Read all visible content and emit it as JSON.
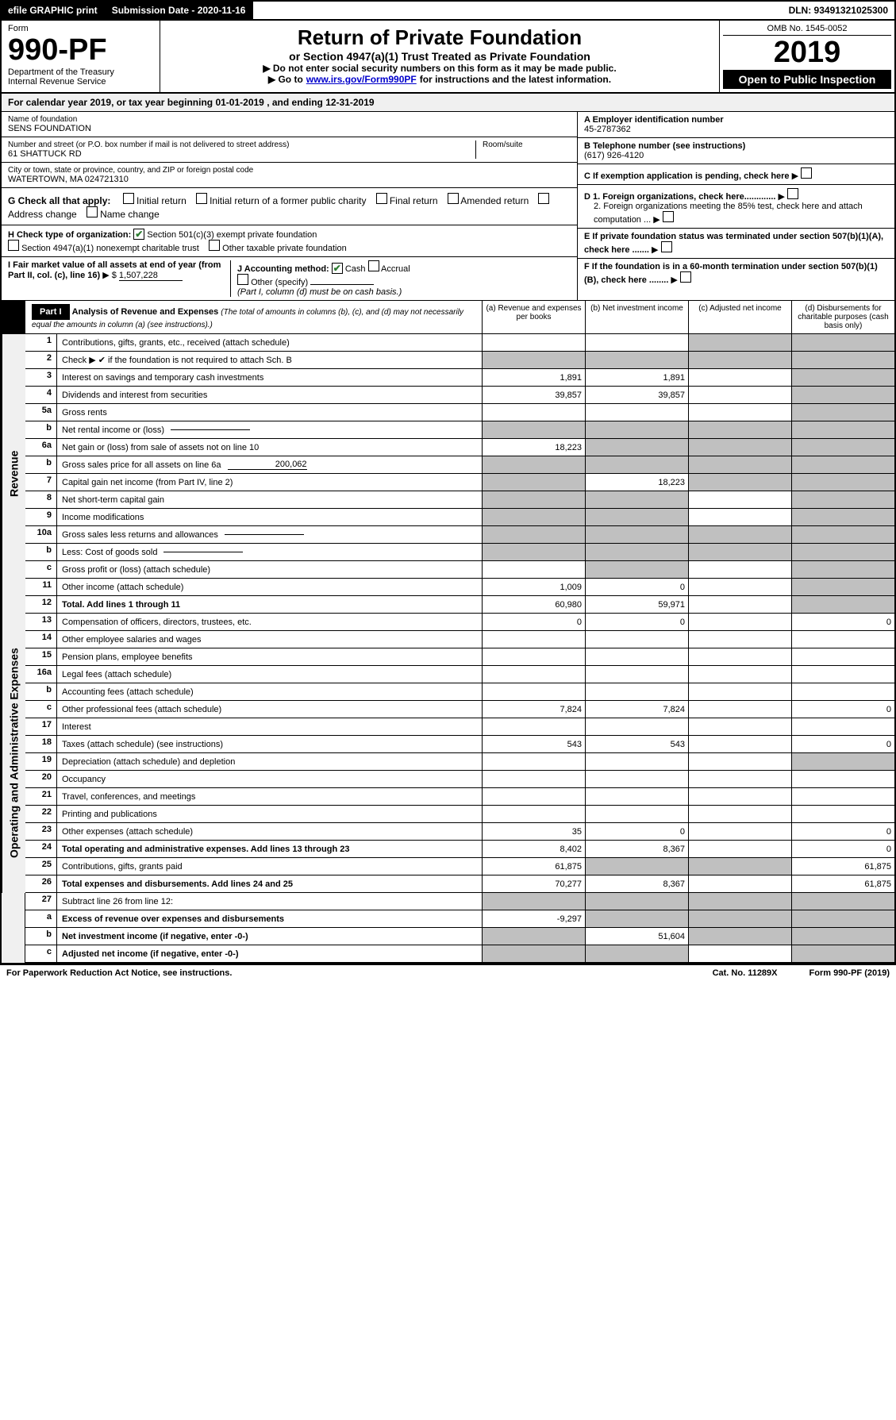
{
  "topbar": {
    "efile": "efile GRAPHIC print",
    "submission_label": "Submission Date - 2020-11-16",
    "dln": "DLN: 93491321025300"
  },
  "header": {
    "form_label": "Form",
    "form_number": "990-PF",
    "dept": "Department of the Treasury",
    "irs": "Internal Revenue Service",
    "title": "Return of Private Foundation",
    "subtitle": "or Section 4947(a)(1) Trust Treated as Private Foundation",
    "instr1": "▶ Do not enter social security numbers on this form as it may be made public.",
    "instr2_pre": "▶ Go to ",
    "instr2_link": "www.irs.gov/Form990PF",
    "instr2_post": " for instructions and the latest information.",
    "omb": "OMB No. 1545-0052",
    "year": "2019",
    "inspect": "Open to Public Inspection"
  },
  "calyear": {
    "text_pre": "For calendar year 2019, or tax year beginning ",
    "begin": "01-01-2019",
    "text_mid": " , and ending ",
    "end": "12-31-2019"
  },
  "entity": {
    "name_label": "Name of foundation",
    "name": "SENS FOUNDATION",
    "addr_label": "Number and street (or P.O. box number if mail is not delivered to street address)",
    "addr": "61 SHATTUCK RD",
    "room_label": "Room/suite",
    "city_label": "City or town, state or province, country, and ZIP or foreign postal code",
    "city": "WATERTOWN, MA  024721310",
    "ein_label": "A Employer identification number",
    "ein": "45-2787362",
    "phone_label": "B Telephone number (see instructions)",
    "phone": "(617) 926-4120",
    "c_label": "C If exemption application is pending, check here",
    "d1": "D 1. Foreign organizations, check here.............",
    "d2": "2. Foreign organizations meeting the 85% test, check here and attach computation ...",
    "e_label": "E If private foundation status was terminated under section 507(b)(1)(A), check here .......",
    "f_label": "F If the foundation is in a 60-month termination under section 507(b)(1)(B), check here ........"
  },
  "sectionG": {
    "label": "G Check all that apply:",
    "opts": [
      "Initial return",
      "Initial return of a former public charity",
      "Final return",
      "Amended return",
      "Address change",
      "Name change"
    ]
  },
  "sectionH": {
    "label": "H Check type of organization:",
    "opt1": "Section 501(c)(3) exempt private foundation",
    "opt2": "Section 4947(a)(1) nonexempt charitable trust",
    "opt3": "Other taxable private foundation"
  },
  "sectionI": {
    "label": "I Fair market value of all assets at end of year (from Part II, col. (c), line 16)",
    "value": "1,507,228"
  },
  "sectionJ": {
    "label": "J Accounting method:",
    "cash": "Cash",
    "accrual": "Accrual",
    "other": "Other (specify)",
    "note": "(Part I, column (d) must be on cash basis.)"
  },
  "part1": {
    "label": "Part I",
    "title": "Analysis of Revenue and Expenses",
    "note": "(The total of amounts in columns (b), (c), and (d) may not necessarily equal the amounts in column (a) (see instructions).)",
    "col_a": "(a) Revenue and expenses per books",
    "col_b": "(b) Net investment income",
    "col_c": "(c) Adjusted net income",
    "col_d": "(d) Disbursements for charitable purposes (cash basis only)"
  },
  "side_labels": {
    "revenue": "Revenue",
    "expenses": "Operating and Administrative Expenses"
  },
  "revenue_rows": [
    {
      "n": "1",
      "label": "Contributions, gifts, grants, etc., received (attach schedule)",
      "a": "",
      "b": "",
      "c": "shaded",
      "d": "shaded"
    },
    {
      "n": "2",
      "label": "Check ▶ ✔ if the foundation is not required to attach Sch. B",
      "a": "shaded",
      "b": "shaded",
      "c": "shaded",
      "d": "shaded",
      "checked": true
    },
    {
      "n": "3",
      "label": "Interest on savings and temporary cash investments",
      "a": "1,891",
      "b": "1,891",
      "c": "",
      "d": "shaded"
    },
    {
      "n": "4",
      "label": "Dividends and interest from securities",
      "a": "39,857",
      "b": "39,857",
      "c": "",
      "d": "shaded"
    },
    {
      "n": "5a",
      "label": "Gross rents",
      "a": "",
      "b": "",
      "c": "",
      "d": "shaded"
    },
    {
      "n": "b",
      "label": "Net rental income or (loss)",
      "a": "shaded",
      "b": "shaded",
      "c": "shaded",
      "d": "shaded",
      "input": true
    },
    {
      "n": "6a",
      "label": "Net gain or (loss) from sale of assets not on line 10",
      "a": "18,223",
      "b": "shaded",
      "c": "shaded",
      "d": "shaded"
    },
    {
      "n": "b",
      "label": "Gross sales price for all assets on line 6a",
      "a": "shaded",
      "b": "shaded",
      "c": "shaded",
      "d": "shaded",
      "input": true,
      "input_val": "200,062"
    },
    {
      "n": "7",
      "label": "Capital gain net income (from Part IV, line 2)",
      "a": "shaded",
      "b": "18,223",
      "c": "shaded",
      "d": "shaded"
    },
    {
      "n": "8",
      "label": "Net short-term capital gain",
      "a": "shaded",
      "b": "shaded",
      "c": "",
      "d": "shaded"
    },
    {
      "n": "9",
      "label": "Income modifications",
      "a": "shaded",
      "b": "shaded",
      "c": "",
      "d": "shaded"
    },
    {
      "n": "10a",
      "label": "Gross sales less returns and allowances",
      "a": "shaded",
      "b": "shaded",
      "c": "shaded",
      "d": "shaded",
      "input": true
    },
    {
      "n": "b",
      "label": "Less: Cost of goods sold",
      "a": "shaded",
      "b": "shaded",
      "c": "shaded",
      "d": "shaded",
      "input": true
    },
    {
      "n": "c",
      "label": "Gross profit or (loss) (attach schedule)",
      "a": "",
      "b": "shaded",
      "c": "",
      "d": "shaded"
    },
    {
      "n": "11",
      "label": "Other income (attach schedule)",
      "a": "1,009",
      "b": "0",
      "c": "",
      "d": "shaded"
    },
    {
      "n": "12",
      "label": "Total. Add lines 1 through 11",
      "a": "60,980",
      "b": "59,971",
      "c": "",
      "d": "shaded",
      "bold": true
    }
  ],
  "expense_rows": [
    {
      "n": "13",
      "label": "Compensation of officers, directors, trustees, etc.",
      "a": "0",
      "b": "0",
      "c": "",
      "d": "0"
    },
    {
      "n": "14",
      "label": "Other employee salaries and wages",
      "a": "",
      "b": "",
      "c": "",
      "d": ""
    },
    {
      "n": "15",
      "label": "Pension plans, employee benefits",
      "a": "",
      "b": "",
      "c": "",
      "d": ""
    },
    {
      "n": "16a",
      "label": "Legal fees (attach schedule)",
      "a": "",
      "b": "",
      "c": "",
      "d": ""
    },
    {
      "n": "b",
      "label": "Accounting fees (attach schedule)",
      "a": "",
      "b": "",
      "c": "",
      "d": ""
    },
    {
      "n": "c",
      "label": "Other professional fees (attach schedule)",
      "a": "7,824",
      "b": "7,824",
      "c": "",
      "d": "0"
    },
    {
      "n": "17",
      "label": "Interest",
      "a": "",
      "b": "",
      "c": "",
      "d": ""
    },
    {
      "n": "18",
      "label": "Taxes (attach schedule) (see instructions)",
      "a": "543",
      "b": "543",
      "c": "",
      "d": "0"
    },
    {
      "n": "19",
      "label": "Depreciation (attach schedule) and depletion",
      "a": "",
      "b": "",
      "c": "",
      "d": "shaded"
    },
    {
      "n": "20",
      "label": "Occupancy",
      "a": "",
      "b": "",
      "c": "",
      "d": ""
    },
    {
      "n": "21",
      "label": "Travel, conferences, and meetings",
      "a": "",
      "b": "",
      "c": "",
      "d": ""
    },
    {
      "n": "22",
      "label": "Printing and publications",
      "a": "",
      "b": "",
      "c": "",
      "d": ""
    },
    {
      "n": "23",
      "label": "Other expenses (attach schedule)",
      "a": "35",
      "b": "0",
      "c": "",
      "d": "0"
    },
    {
      "n": "24",
      "label": "Total operating and administrative expenses. Add lines 13 through 23",
      "a": "8,402",
      "b": "8,367",
      "c": "",
      "d": "0",
      "bold": true
    },
    {
      "n": "25",
      "label": "Contributions, gifts, grants paid",
      "a": "61,875",
      "b": "shaded",
      "c": "shaded",
      "d": "61,875"
    },
    {
      "n": "26",
      "label": "Total expenses and disbursements. Add lines 24 and 25",
      "a": "70,277",
      "b": "8,367",
      "c": "",
      "d": "61,875",
      "bold": true
    }
  ],
  "line27": [
    {
      "n": "27",
      "label": "Subtract line 26 from line 12:",
      "a": "shaded",
      "b": "shaded",
      "c": "shaded",
      "d": "shaded"
    },
    {
      "n": "a",
      "label": "Excess of revenue over expenses and disbursements",
      "a": "-9,297",
      "b": "shaded",
      "c": "shaded",
      "d": "shaded",
      "bold": true
    },
    {
      "n": "b",
      "label": "Net investment income (if negative, enter -0-)",
      "a": "shaded",
      "b": "51,604",
      "c": "shaded",
      "d": "shaded",
      "bold": true
    },
    {
      "n": "c",
      "label": "Adjusted net income (if negative, enter -0-)",
      "a": "shaded",
      "b": "shaded",
      "c": "",
      "d": "shaded",
      "bold": true
    }
  ],
  "footer": {
    "left": "For Paperwork Reduction Act Notice, see instructions.",
    "center": "Cat. No. 11289X",
    "right": "Form 990-PF (2019)"
  }
}
